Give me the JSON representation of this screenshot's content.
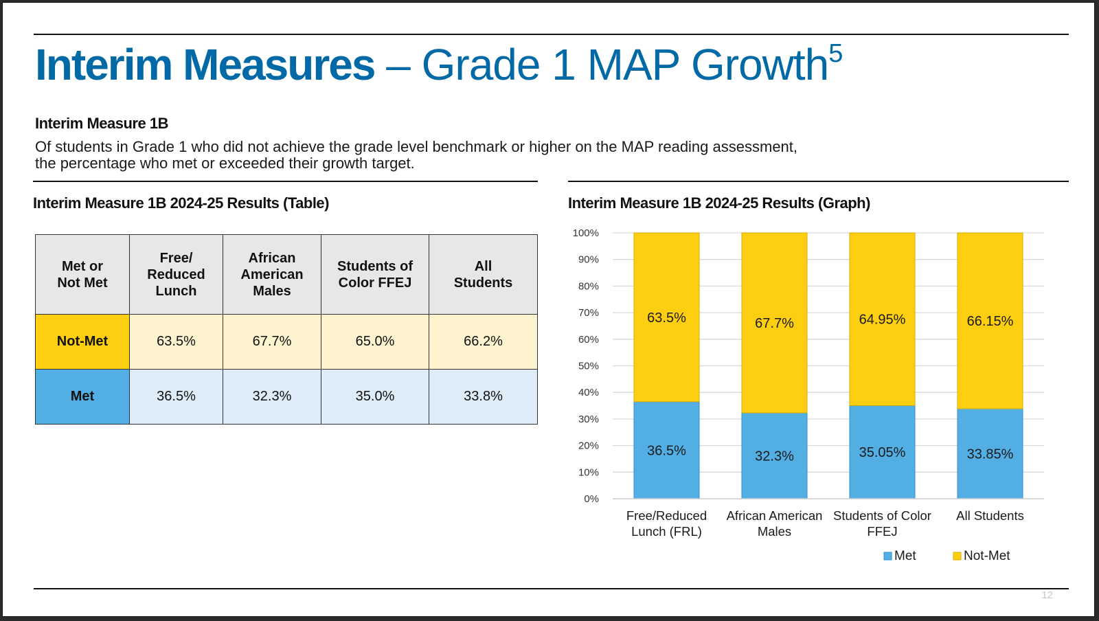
{
  "page": {
    "title_bold": "Interim Measures",
    "title_light": " – Grade 1 MAP Growth",
    "title_superscript": "5",
    "subhead": "Interim Measure 1B",
    "description": "Of students in Grade 1 who did not achieve the grade level benchmark or higher on the MAP reading assessment, the percentage who met or exceeded their growth target.",
    "page_number": "12"
  },
  "table_section": {
    "title": "Interim Measure 1B 2024-25 Results (Table)",
    "headers": [
      [
        "Met or",
        "Not Met"
      ],
      [
        "Free/",
        "Reduced",
        "Lunch"
      ],
      [
        "African",
        "American",
        "Males"
      ],
      [
        "Students of",
        "Color FFEJ"
      ],
      [
        "All",
        "Students"
      ]
    ],
    "rows": [
      {
        "label": "Not-Met",
        "values": [
          "63.5%",
          "67.7%",
          "65.0%",
          "66.2%"
        ]
      },
      {
        "label": "Met",
        "values": [
          "36.5%",
          "32.3%",
          "35.0%",
          "33.8%"
        ]
      }
    ]
  },
  "colors": {
    "title_blue": "#0069a6",
    "met": "#52aee3",
    "not_met": "#fdcf10",
    "met_light": "#ddecf8",
    "not_met_light": "#fdf4cf",
    "header_gray": "#e7e7e7"
  },
  "chart_data": {
    "type": "bar",
    "stacked": true,
    "title": "Interim Measure 1B 2024-25 Results (Graph)",
    "categories": [
      [
        "Free/Reduced",
        "Lunch (FRL)"
      ],
      [
        "African American",
        "Males"
      ],
      [
        "Students of Color",
        "FFEJ"
      ],
      [
        "All Students"
      ]
    ],
    "series": [
      {
        "name": "Met",
        "color": "#52aee3",
        "values": [
          36.5,
          32.3,
          35.05,
          33.85
        ],
        "labels": [
          "36.5%",
          "32.3%",
          "35.05%",
          "33.85%"
        ]
      },
      {
        "name": "Not-Met",
        "color": "#fdcf10",
        "values": [
          63.5,
          67.7,
          64.95,
          66.15
        ],
        "labels": [
          "63.5%",
          "67.7%",
          "64.95%",
          "66.15%"
        ]
      }
    ],
    "yticks": [
      "0%",
      "10%",
      "20%",
      "30%",
      "40%",
      "50%",
      "60%",
      "70%",
      "80%",
      "90%",
      "100%"
    ],
    "ylim": [
      0,
      100
    ],
    "xlabel": "",
    "ylabel": "",
    "grid": true,
    "legend": {
      "position": "bottom-right",
      "entries": [
        "Met",
        "Not-Met"
      ]
    }
  }
}
